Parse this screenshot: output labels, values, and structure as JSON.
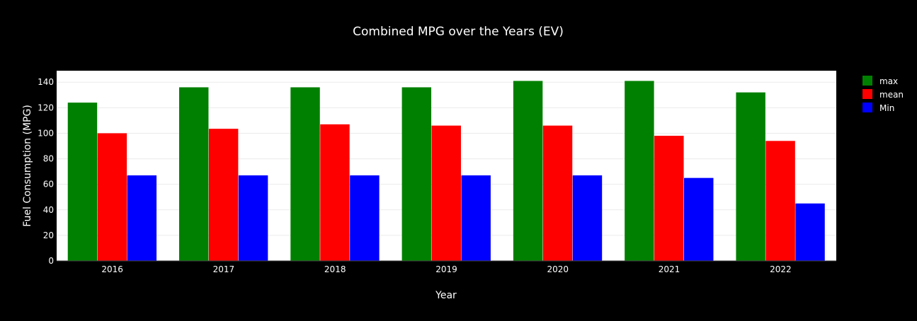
{
  "chart_data": {
    "type": "bar",
    "title": "Combined MPG over the Years (EV)",
    "xlabel": "Year",
    "ylabel": "Fuel Consumption (MPG)",
    "categories": [
      "2016",
      "2017",
      "2018",
      "2019",
      "2020",
      "2021",
      "2022"
    ],
    "ylim": [
      0,
      149
    ],
    "yticks": [
      0,
      20,
      40,
      60,
      80,
      100,
      120,
      140
    ],
    "grid": true,
    "legend_position": "top-right",
    "series": [
      {
        "name": "max",
        "color": "#008000",
        "values": [
          124,
          136,
          136,
          136,
          141,
          141,
          132
        ]
      },
      {
        "name": "mean",
        "color": "#ff0000",
        "values": [
          100,
          103.5,
          107,
          106,
          106,
          98,
          94
        ]
      },
      {
        "name": "Min",
        "color": "#0000ff",
        "values": [
          67,
          67,
          67,
          67,
          67,
          65,
          45
        ]
      }
    ]
  }
}
